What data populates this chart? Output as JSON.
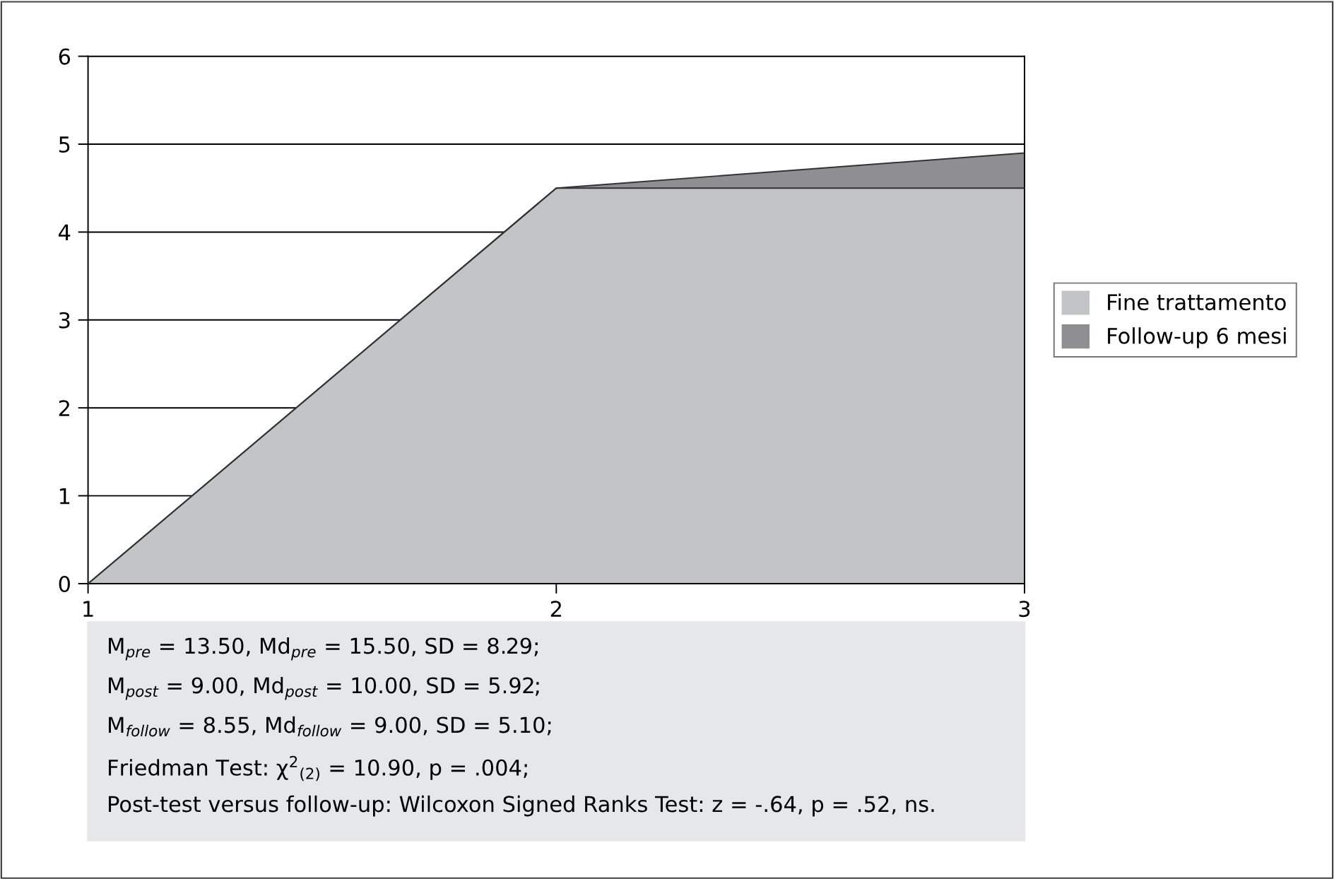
{
  "chart_data": {
    "type": "area",
    "stacked": true,
    "categories": [
      "1",
      "2",
      "3"
    ],
    "series": [
      {
        "name": "Fine trattamento",
        "color": "#c3c4c8",
        "values": [
          0,
          4.5,
          4.5
        ]
      },
      {
        "name": "Follow-up 6 mesi",
        "color": "#8e8e93",
        "values": [
          0,
          0,
          0.4
        ]
      }
    ],
    "ylim": [
      0,
      6
    ],
    "yticks": [
      0,
      1,
      2,
      3,
      4,
      5,
      6
    ],
    "grid": "y",
    "legend": "right",
    "annotations": [
      "M$_{pre}$ = 13.50, Md$_{pre}$ = 15.50, SD = 8.29;",
      "M$_{post}$ = 9.00, Md$_{post}$ = 10.00, SD = 5.92;",
      "M$_{follow}$ = 8.55, Md$_{follow}$ = 9.00, SD = 5.10;",
      "Friedman Test: χ$^{2}$$_{(2)}$ = 10.90, p = .004;",
      "Post-test versus follow-up: Wilcoxon Signed Ranks Test: z = -.64, p = .52, ns."
    ]
  }
}
